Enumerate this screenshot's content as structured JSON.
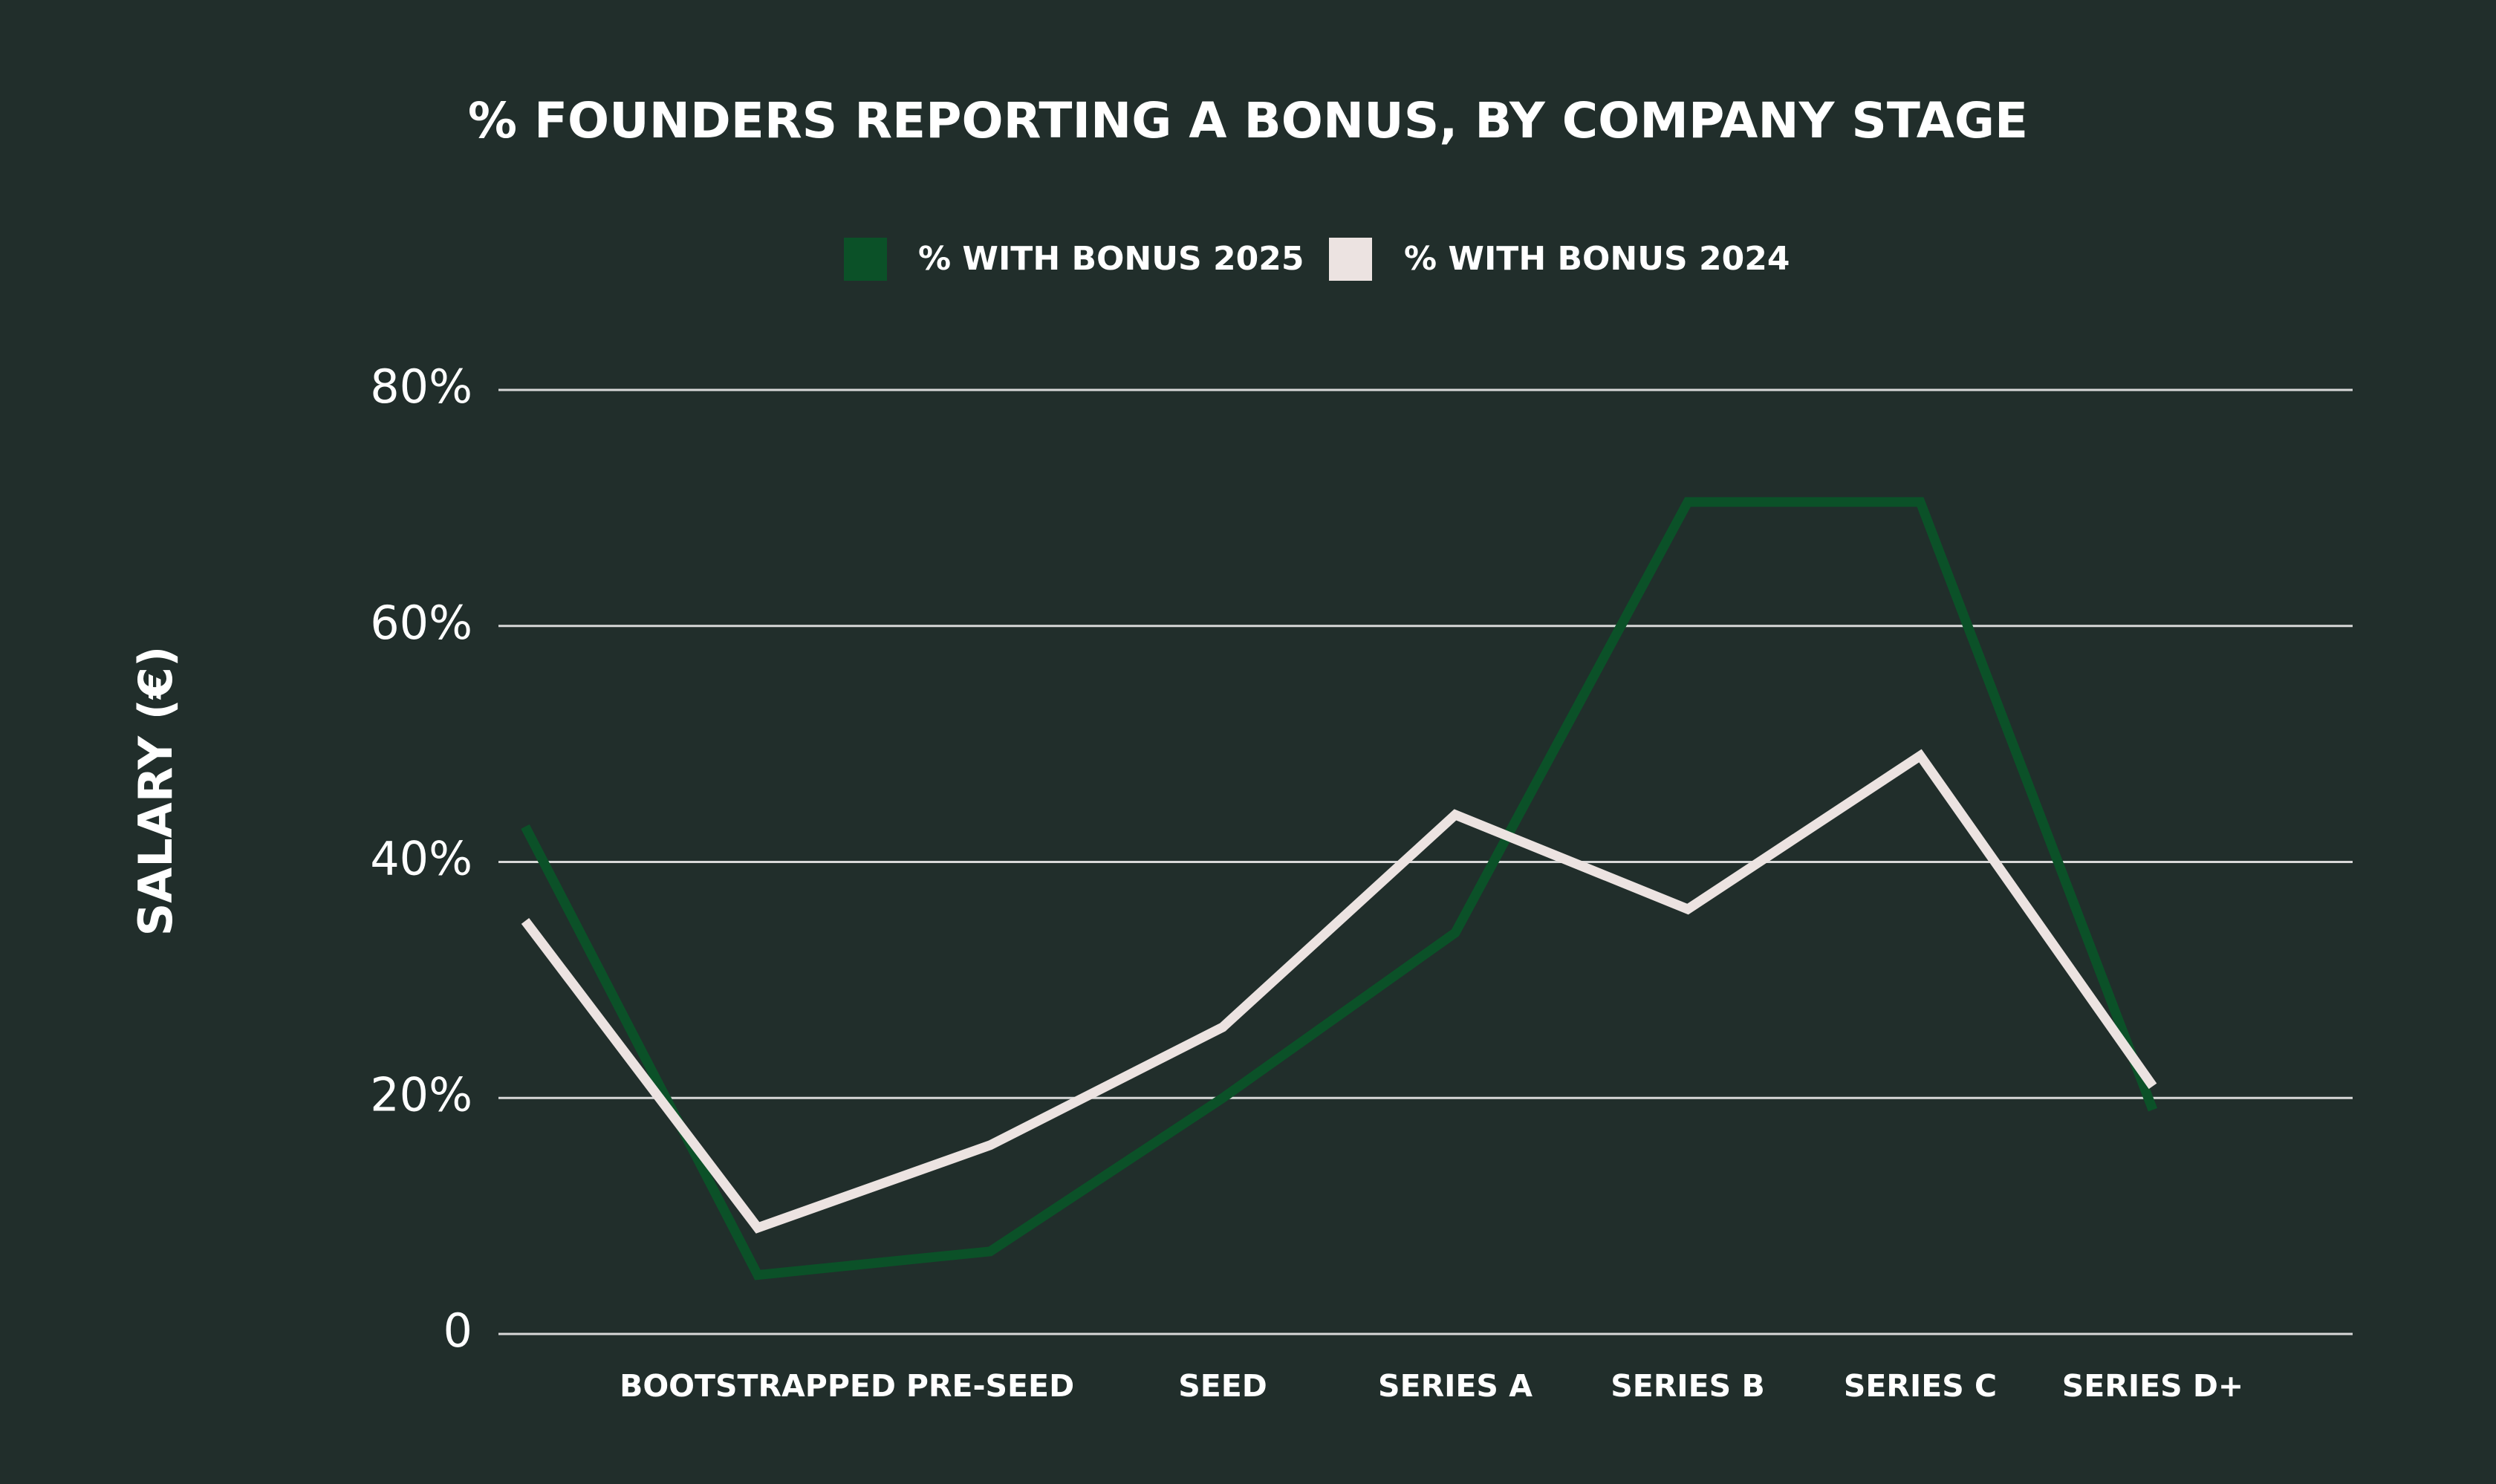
{
  "chart_data": {
    "type": "line",
    "title": "% FOUNDERS REPORTING A BONUS, BY COMPANY STAGE",
    "y_label": "SALARY (€)",
    "categories": [
      null,
      "BOOTSTRAPPED",
      "PRE-SEED",
      "SEED",
      "SERIES A",
      "SERIES B",
      "SERIES C",
      "SERIES D+"
    ],
    "series": [
      {
        "name": "% WITH BONUS 2025",
        "color": "#0b5128",
        "values": [
          43,
          5,
          7,
          20,
          34,
          70.5,
          70.5,
          19
        ]
      },
      {
        "name": "% WITH BONUS 2024",
        "color": "#ece3e1",
        "values": [
          35,
          9,
          16,
          26,
          44,
          36,
          49,
          21
        ]
      }
    ],
    "ylim": [
      0,
      80
    ],
    "yticks": [
      0,
      {
        "value": 20,
        "label": "20%"
      },
      {
        "value": 40,
        "label": "40%"
      },
      {
        "value": 60,
        "label": "60%"
      },
      {
        "value": 80,
        "label": "80%"
      }
    ],
    "grid": true,
    "legend": "top"
  }
}
